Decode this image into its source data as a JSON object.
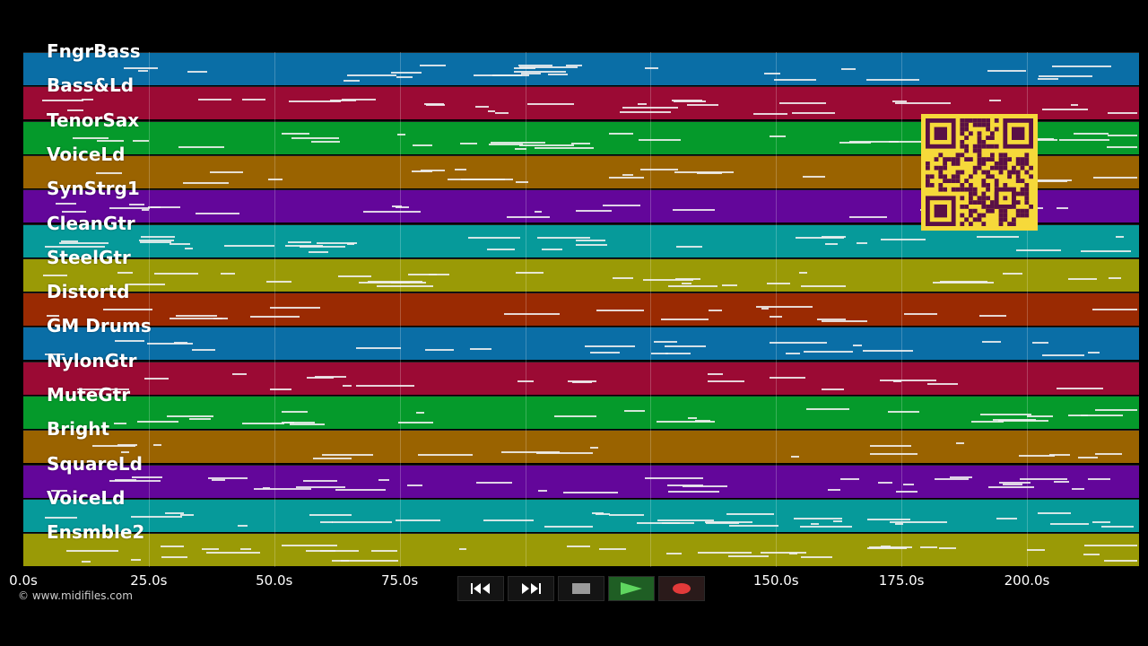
{
  "tracks": [
    {
      "name": "FngrBass",
      "color": "#0a6ea6"
    },
    {
      "name": "Bass&Ld",
      "color": "#9b0a34"
    },
    {
      "name": "TenorSax",
      "color": "#059a2b"
    },
    {
      "name": "VoiceLd",
      "color": "#9a6300"
    },
    {
      "name": "SynStrg1",
      "color": "#63069a"
    },
    {
      "name": "CleanGtr",
      "color": "#069a9a"
    },
    {
      "name": "SteelGtr",
      "color": "#9a9a06"
    },
    {
      "name": "Distortd",
      "color": "#9a2a02"
    },
    {
      "name": "GM Drums",
      "color": "#0a6ea6"
    },
    {
      "name": "NylonGtr",
      "color": "#9b0a34"
    },
    {
      "name": "MuteGtr",
      "color": "#059a2b"
    },
    {
      "name": "Bright",
      "color": "#9a6300"
    },
    {
      "name": "SquareLd",
      "color": "#63069a"
    },
    {
      "name": "VoiceLd",
      "color": "#069a9a"
    },
    {
      "name": "Ensmble2",
      "color": "#9a9a06"
    }
  ],
  "timeline": {
    "ticks": [
      "0.0s",
      "25.0s",
      "50.0s",
      "75.0s",
      "150.0s",
      "175.0s",
      "200.0s"
    ]
  },
  "copyright": "© www.midifiles.com",
  "transport": [
    {
      "icon": "rewind-icon",
      "action": "rewind"
    },
    {
      "icon": "fast-forward-icon",
      "action": "fast-forward"
    },
    {
      "icon": "stop-icon",
      "action": "stop"
    },
    {
      "icon": "play-icon",
      "action": "play"
    },
    {
      "icon": "record-icon",
      "action": "record"
    }
  ],
  "qr": {
    "icon": "qr-code-icon",
    "color": "#f6d93a",
    "dark": "#5a1046"
  }
}
